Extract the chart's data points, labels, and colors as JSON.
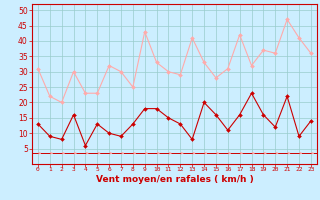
{
  "x": [
    0,
    1,
    2,
    3,
    4,
    5,
    6,
    7,
    8,
    9,
    10,
    11,
    12,
    13,
    14,
    15,
    16,
    17,
    18,
    19,
    20,
    21,
    22,
    23
  ],
  "vent_moyen": [
    13,
    9,
    8,
    16,
    6,
    13,
    10,
    9,
    13,
    18,
    18,
    15,
    13,
    8,
    20,
    16,
    11,
    16,
    23,
    16,
    12,
    22,
    9,
    14
  ],
  "rafales": [
    31,
    22,
    20,
    30,
    23,
    23,
    32,
    30,
    25,
    43,
    33,
    30,
    29,
    41,
    33,
    28,
    31,
    42,
    32,
    37,
    36,
    47,
    41,
    36
  ],
  "color_moyen": "#cc0000",
  "color_rafales": "#ffaaaa",
  "bg_color": "#cceeff",
  "grid_color": "#99cccc",
  "xlabel": "Vent moyen/en rafales ( km/h )",
  "xlabel_color": "#cc0000",
  "tick_color": "#cc0000",
  "ylim": [
    0,
    52
  ],
  "yticks": [
    5,
    10,
    15,
    20,
    25,
    30,
    35,
    40,
    45,
    50
  ],
  "xlim": [
    -0.5,
    23.5
  ],
  "spine_color": "#cc0000"
}
